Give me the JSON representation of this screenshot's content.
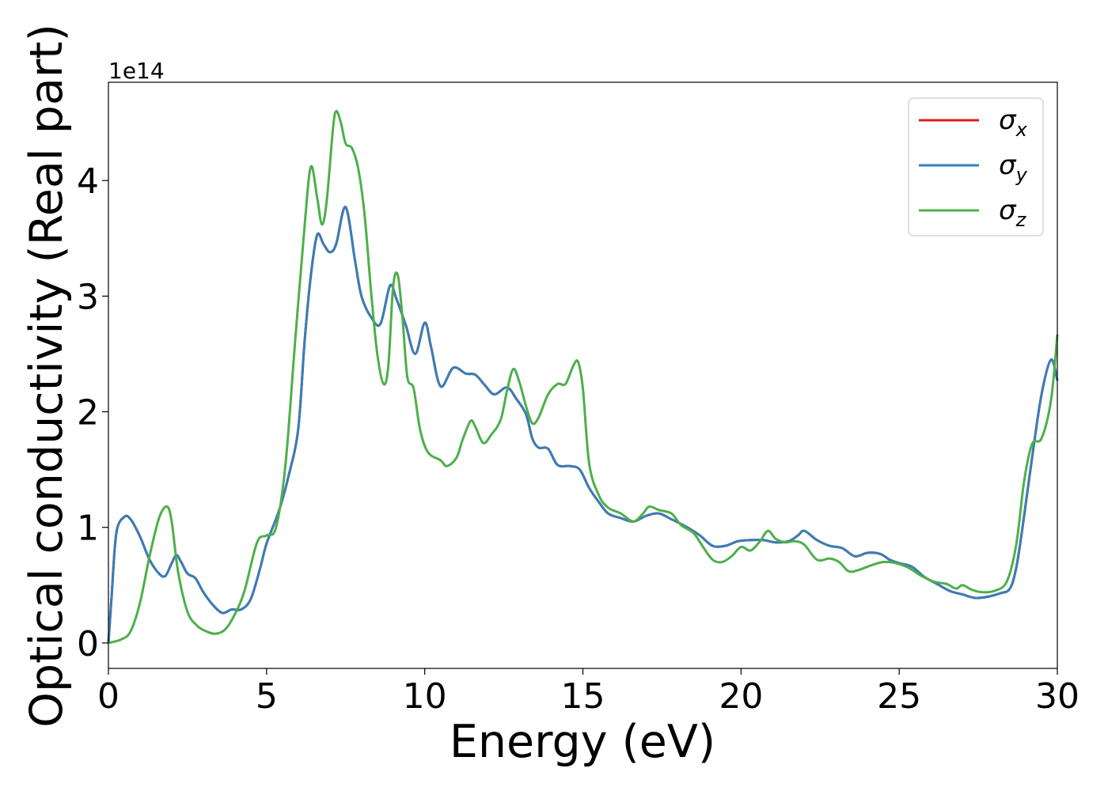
{
  "chart_data": {
    "type": "line",
    "xlabel": "Energy (eV)",
    "ylabel": "Optical conductivity (Real part)",
    "y_offset_label": "1e14",
    "xlim": [
      0,
      30
    ],
    "ylim": [
      -0.22,
      4.85
    ],
    "x_ticks": [
      0,
      5,
      10,
      15,
      20,
      25,
      30
    ],
    "y_ticks": [
      0,
      1,
      2,
      3,
      4
    ],
    "grid": false,
    "legend_position": "top-right",
    "series": [
      {
        "name": "σ",
        "subscript": "x",
        "color": "#e41a1c",
        "points": [
          [
            0,
            0
          ],
          [
            0.1,
            0.4
          ],
          [
            0.25,
            0.95
          ],
          [
            0.5,
            1.09
          ],
          [
            0.7,
            1.07
          ],
          [
            1.0,
            0.92
          ],
          [
            1.3,
            0.72
          ],
          [
            1.6,
            0.6
          ],
          [
            1.8,
            0.58
          ],
          [
            2.0,
            0.69
          ],
          [
            2.15,
            0.76
          ],
          [
            2.3,
            0.7
          ],
          [
            2.5,
            0.6
          ],
          [
            2.75,
            0.56
          ],
          [
            3.0,
            0.44
          ],
          [
            3.3,
            0.33
          ],
          [
            3.6,
            0.26
          ],
          [
            3.9,
            0.29
          ],
          [
            4.2,
            0.29
          ],
          [
            4.5,
            0.38
          ],
          [
            4.8,
            0.65
          ],
          [
            5.0,
            0.86
          ],
          [
            5.4,
            1.15
          ],
          [
            5.7,
            1.45
          ],
          [
            6.0,
            1.85
          ],
          [
            6.2,
            2.6
          ],
          [
            6.4,
            3.18
          ],
          [
            6.6,
            3.53
          ],
          [
            6.8,
            3.45
          ],
          [
            7.0,
            3.38
          ],
          [
            7.2,
            3.45
          ],
          [
            7.5,
            3.77
          ],
          [
            7.8,
            3.3
          ],
          [
            8.0,
            3.0
          ],
          [
            8.3,
            2.82
          ],
          [
            8.6,
            2.76
          ],
          [
            8.9,
            3.09
          ],
          [
            9.1,
            2.98
          ],
          [
            9.4,
            2.75
          ],
          [
            9.7,
            2.5
          ],
          [
            10.0,
            2.77
          ],
          [
            10.2,
            2.56
          ],
          [
            10.5,
            2.22
          ],
          [
            10.9,
            2.38
          ],
          [
            11.3,
            2.33
          ],
          [
            11.6,
            2.32
          ],
          [
            11.9,
            2.23
          ],
          [
            12.2,
            2.15
          ],
          [
            12.6,
            2.21
          ],
          [
            12.9,
            2.11
          ],
          [
            13.2,
            1.98
          ],
          [
            13.4,
            1.77
          ],
          [
            13.6,
            1.69
          ],
          [
            13.9,
            1.68
          ],
          [
            14.2,
            1.54
          ],
          [
            14.6,
            1.53
          ],
          [
            14.9,
            1.5
          ],
          [
            15.2,
            1.34
          ],
          [
            15.5,
            1.22
          ],
          [
            15.8,
            1.12
          ],
          [
            16.2,
            1.08
          ],
          [
            16.6,
            1.05
          ],
          [
            17.0,
            1.1
          ],
          [
            17.4,
            1.12
          ],
          [
            17.8,
            1.07
          ],
          [
            18.3,
            1.0
          ],
          [
            18.7,
            0.93
          ],
          [
            19.1,
            0.84
          ],
          [
            19.5,
            0.84
          ],
          [
            19.9,
            0.88
          ],
          [
            20.3,
            0.89
          ],
          [
            20.7,
            0.89
          ],
          [
            21.1,
            0.87
          ],
          [
            21.5,
            0.88
          ],
          [
            21.8,
            0.93
          ],
          [
            22.0,
            0.97
          ],
          [
            22.4,
            0.89
          ],
          [
            22.8,
            0.84
          ],
          [
            23.2,
            0.82
          ],
          [
            23.6,
            0.75
          ],
          [
            24.0,
            0.78
          ],
          [
            24.4,
            0.77
          ],
          [
            24.7,
            0.72
          ],
          [
            25.0,
            0.69
          ],
          [
            25.4,
            0.66
          ],
          [
            25.8,
            0.57
          ],
          [
            26.2,
            0.51
          ],
          [
            26.6,
            0.45
          ],
          [
            27.0,
            0.42
          ],
          [
            27.4,
            0.39
          ],
          [
            27.8,
            0.4
          ],
          [
            28.2,
            0.43
          ],
          [
            28.5,
            0.47
          ],
          [
            28.7,
            0.65
          ],
          [
            28.9,
            1.0
          ],
          [
            29.2,
            1.6
          ],
          [
            29.5,
            2.15
          ],
          [
            29.8,
            2.45
          ],
          [
            30.0,
            2.27
          ]
        ]
      },
      {
        "name": "σ",
        "subscript": "y",
        "color": "#377eb8",
        "points": [
          [
            0,
            0
          ],
          [
            0.1,
            0.4
          ],
          [
            0.25,
            0.95
          ],
          [
            0.5,
            1.09
          ],
          [
            0.7,
            1.07
          ],
          [
            1.0,
            0.92
          ],
          [
            1.3,
            0.72
          ],
          [
            1.6,
            0.6
          ],
          [
            1.8,
            0.58
          ],
          [
            2.0,
            0.69
          ],
          [
            2.15,
            0.76
          ],
          [
            2.3,
            0.7
          ],
          [
            2.5,
            0.6
          ],
          [
            2.75,
            0.56
          ],
          [
            3.0,
            0.44
          ],
          [
            3.3,
            0.33
          ],
          [
            3.6,
            0.26
          ],
          [
            3.9,
            0.29
          ],
          [
            4.2,
            0.29
          ],
          [
            4.5,
            0.38
          ],
          [
            4.8,
            0.65
          ],
          [
            5.0,
            0.86
          ],
          [
            5.4,
            1.15
          ],
          [
            5.7,
            1.45
          ],
          [
            6.0,
            1.85
          ],
          [
            6.2,
            2.6
          ],
          [
            6.4,
            3.18
          ],
          [
            6.6,
            3.53
          ],
          [
            6.8,
            3.45
          ],
          [
            7.0,
            3.38
          ],
          [
            7.2,
            3.45
          ],
          [
            7.5,
            3.77
          ],
          [
            7.8,
            3.3
          ],
          [
            8.0,
            3.0
          ],
          [
            8.3,
            2.82
          ],
          [
            8.6,
            2.76
          ],
          [
            8.9,
            3.09
          ],
          [
            9.1,
            2.98
          ],
          [
            9.4,
            2.75
          ],
          [
            9.7,
            2.5
          ],
          [
            10.0,
            2.77
          ],
          [
            10.2,
            2.56
          ],
          [
            10.5,
            2.22
          ],
          [
            10.9,
            2.38
          ],
          [
            11.3,
            2.33
          ],
          [
            11.6,
            2.32
          ],
          [
            11.9,
            2.23
          ],
          [
            12.2,
            2.15
          ],
          [
            12.6,
            2.21
          ],
          [
            12.9,
            2.11
          ],
          [
            13.2,
            1.98
          ],
          [
            13.4,
            1.77
          ],
          [
            13.6,
            1.69
          ],
          [
            13.9,
            1.68
          ],
          [
            14.2,
            1.54
          ],
          [
            14.6,
            1.53
          ],
          [
            14.9,
            1.5
          ],
          [
            15.2,
            1.34
          ],
          [
            15.5,
            1.22
          ],
          [
            15.8,
            1.12
          ],
          [
            16.2,
            1.08
          ],
          [
            16.6,
            1.05
          ],
          [
            17.0,
            1.1
          ],
          [
            17.4,
            1.12
          ],
          [
            17.8,
            1.07
          ],
          [
            18.3,
            1.0
          ],
          [
            18.7,
            0.93
          ],
          [
            19.1,
            0.84
          ],
          [
            19.5,
            0.84
          ],
          [
            19.9,
            0.88
          ],
          [
            20.3,
            0.89
          ],
          [
            20.7,
            0.89
          ],
          [
            21.1,
            0.87
          ],
          [
            21.5,
            0.88
          ],
          [
            21.8,
            0.93
          ],
          [
            22.0,
            0.97
          ],
          [
            22.4,
            0.89
          ],
          [
            22.8,
            0.84
          ],
          [
            23.2,
            0.82
          ],
          [
            23.6,
            0.75
          ],
          [
            24.0,
            0.78
          ],
          [
            24.4,
            0.77
          ],
          [
            24.7,
            0.72
          ],
          [
            25.0,
            0.69
          ],
          [
            25.4,
            0.66
          ],
          [
            25.8,
            0.57
          ],
          [
            26.2,
            0.51
          ],
          [
            26.6,
            0.45
          ],
          [
            27.0,
            0.42
          ],
          [
            27.4,
            0.39
          ],
          [
            27.8,
            0.4
          ],
          [
            28.2,
            0.43
          ],
          [
            28.5,
            0.47
          ],
          [
            28.7,
            0.65
          ],
          [
            28.9,
            1.0
          ],
          [
            29.2,
            1.6
          ],
          [
            29.5,
            2.15
          ],
          [
            29.8,
            2.45
          ],
          [
            30.0,
            2.27
          ]
        ]
      },
      {
        "name": "σ",
        "subscript": "z",
        "color": "#4daf4a",
        "points": [
          [
            0,
            0
          ],
          [
            0.4,
            0.03
          ],
          [
            0.7,
            0.1
          ],
          [
            1.0,
            0.35
          ],
          [
            1.3,
            0.75
          ],
          [
            1.6,
            1.08
          ],
          [
            1.85,
            1.18
          ],
          [
            2.0,
            1.05
          ],
          [
            2.2,
            0.62
          ],
          [
            2.5,
            0.27
          ],
          [
            2.8,
            0.15
          ],
          [
            3.1,
            0.1
          ],
          [
            3.4,
            0.08
          ],
          [
            3.7,
            0.12
          ],
          [
            4.0,
            0.25
          ],
          [
            4.3,
            0.45
          ],
          [
            4.7,
            0.87
          ],
          [
            5.0,
            0.93
          ],
          [
            5.3,
            1.0
          ],
          [
            5.6,
            1.55
          ],
          [
            5.9,
            2.6
          ],
          [
            6.2,
            3.6
          ],
          [
            6.4,
            4.12
          ],
          [
            6.6,
            3.85
          ],
          [
            6.75,
            3.62
          ],
          [
            6.9,
            3.82
          ],
          [
            7.1,
            4.45
          ],
          [
            7.2,
            4.6
          ],
          [
            7.35,
            4.5
          ],
          [
            7.5,
            4.32
          ],
          [
            7.7,
            4.28
          ],
          [
            7.9,
            4.1
          ],
          [
            8.1,
            3.7
          ],
          [
            8.3,
            3.05
          ],
          [
            8.5,
            2.5
          ],
          [
            8.7,
            2.24
          ],
          [
            8.85,
            2.4
          ],
          [
            9.0,
            3.08
          ],
          [
            9.15,
            3.18
          ],
          [
            9.3,
            2.8
          ],
          [
            9.45,
            2.3
          ],
          [
            9.65,
            2.2
          ],
          [
            9.85,
            1.85
          ],
          [
            10.1,
            1.65
          ],
          [
            10.5,
            1.58
          ],
          [
            10.7,
            1.53
          ],
          [
            11.0,
            1.6
          ],
          [
            11.2,
            1.76
          ],
          [
            11.45,
            1.92
          ],
          [
            11.6,
            1.87
          ],
          [
            11.85,
            1.73
          ],
          [
            12.1,
            1.8
          ],
          [
            12.4,
            1.93
          ],
          [
            12.6,
            2.18
          ],
          [
            12.8,
            2.37
          ],
          [
            13.0,
            2.25
          ],
          [
            13.2,
            2.05
          ],
          [
            13.4,
            1.9
          ],
          [
            13.6,
            1.95
          ],
          [
            13.9,
            2.15
          ],
          [
            14.2,
            2.24
          ],
          [
            14.45,
            2.24
          ],
          [
            14.7,
            2.4
          ],
          [
            14.85,
            2.43
          ],
          [
            15.0,
            2.2
          ],
          [
            15.2,
            1.55
          ],
          [
            15.5,
            1.28
          ],
          [
            15.8,
            1.17
          ],
          [
            16.2,
            1.12
          ],
          [
            16.6,
            1.05
          ],
          [
            16.9,
            1.12
          ],
          [
            17.1,
            1.18
          ],
          [
            17.4,
            1.15
          ],
          [
            17.8,
            1.12
          ],
          [
            18.1,
            1.02
          ],
          [
            18.5,
            0.95
          ],
          [
            18.8,
            0.83
          ],
          [
            19.1,
            0.72
          ],
          [
            19.4,
            0.7
          ],
          [
            19.7,
            0.75
          ],
          [
            20.0,
            0.83
          ],
          [
            20.3,
            0.8
          ],
          [
            20.6,
            0.88
          ],
          [
            20.85,
            0.97
          ],
          [
            21.1,
            0.9
          ],
          [
            21.4,
            0.87
          ],
          [
            21.7,
            0.88
          ],
          [
            22.0,
            0.85
          ],
          [
            22.4,
            0.72
          ],
          [
            22.8,
            0.73
          ],
          [
            23.1,
            0.7
          ],
          [
            23.4,
            0.62
          ],
          [
            23.7,
            0.63
          ],
          [
            24.1,
            0.67
          ],
          [
            24.5,
            0.7
          ],
          [
            24.9,
            0.69
          ],
          [
            25.3,
            0.65
          ],
          [
            25.7,
            0.58
          ],
          [
            26.1,
            0.53
          ],
          [
            26.5,
            0.51
          ],
          [
            26.8,
            0.47
          ],
          [
            27.0,
            0.5
          ],
          [
            27.3,
            0.46
          ],
          [
            27.6,
            0.44
          ],
          [
            28.0,
            0.45
          ],
          [
            28.4,
            0.53
          ],
          [
            28.7,
            0.85
          ],
          [
            28.95,
            1.4
          ],
          [
            29.2,
            1.72
          ],
          [
            29.5,
            1.77
          ],
          [
            29.8,
            2.1
          ],
          [
            30.0,
            2.67
          ]
        ]
      }
    ]
  }
}
